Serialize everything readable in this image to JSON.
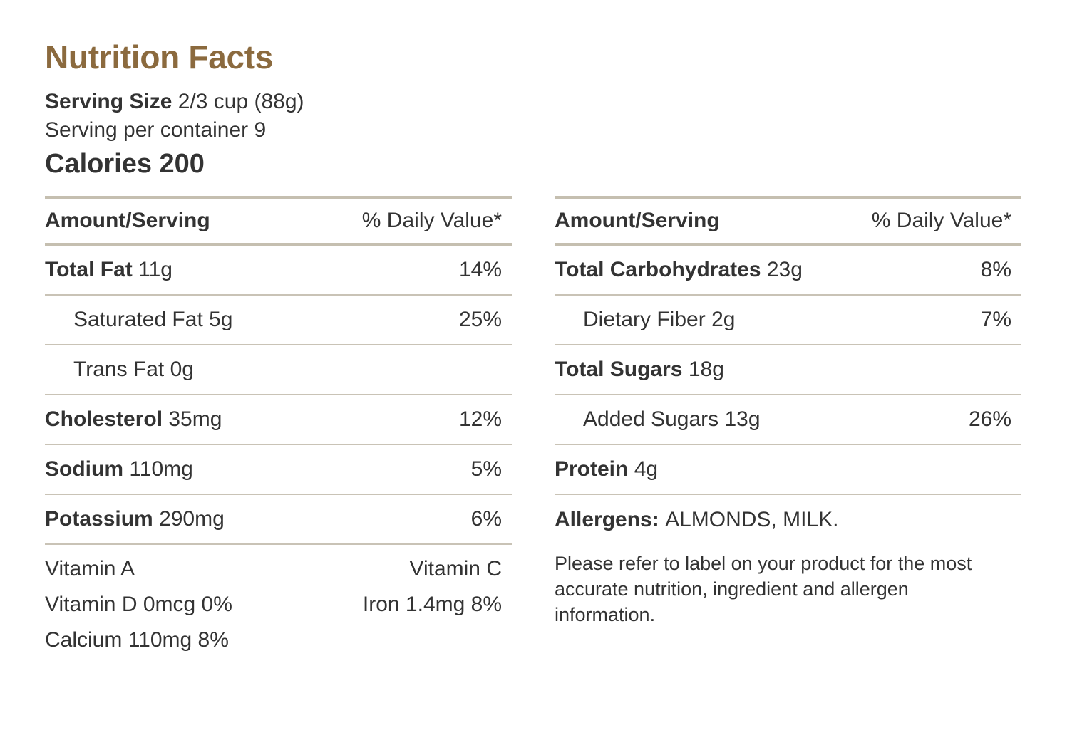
{
  "title": "Nutrition Facts",
  "serving": {
    "size_label": "Serving Size",
    "size_value": "2/3 cup (88g)",
    "per_container": "Serving per container 9"
  },
  "calories": "Calories 200",
  "headers": {
    "amount": "Amount/Serving",
    "daily_value": "% Daily Value*"
  },
  "left_rows": [
    {
      "name": "Total Fat",
      "amount": "11g",
      "dv": "14%",
      "bold": true
    },
    {
      "name": "Saturated Fat",
      "amount": "5g",
      "dv": "25%",
      "bold": false
    },
    {
      "name": "Trans Fat",
      "amount": "0g",
      "dv": "",
      "bold": false
    },
    {
      "name": "Cholesterol",
      "amount": "35mg",
      "dv": "12%",
      "bold": true
    },
    {
      "name": "Sodium",
      "amount": "110mg",
      "dv": "5%",
      "bold": true
    },
    {
      "name": "Potassium",
      "amount": "290mg",
      "dv": "6%",
      "bold": true
    }
  ],
  "vitamins": {
    "vitamin_a": "Vitamin A",
    "vitamin_c": "Vitamin C",
    "vitamin_d": "Vitamin D 0mcg 0%",
    "iron": "Iron 1.4mg 8%",
    "calcium": "Calcium 110mg 8%"
  },
  "right_rows": [
    {
      "name": "Total Carbohydrates",
      "amount": "23g",
      "dv": "8%",
      "bold": true
    },
    {
      "name": "Dietary Fiber",
      "amount": "2g",
      "dv": "7%",
      "bold": false
    },
    {
      "name": "Total Sugars",
      "amount": "18g",
      "dv": "",
      "bold": true
    },
    {
      "name": "Added Sugars",
      "amount": "13g",
      "dv": "26%",
      "bold": false
    },
    {
      "name": "Protein",
      "amount": "4g",
      "dv": "",
      "bold": true
    }
  ],
  "allergens": {
    "label": "Allergens:",
    "value": "ALMONDS, MILK."
  },
  "disclaimer": "Please refer to label on your product for the most accurate nutrition, ingredient and allergen information.",
  "colors": {
    "title": "#8b6a3e",
    "text": "#333333",
    "rule": "#c5bfb0"
  }
}
